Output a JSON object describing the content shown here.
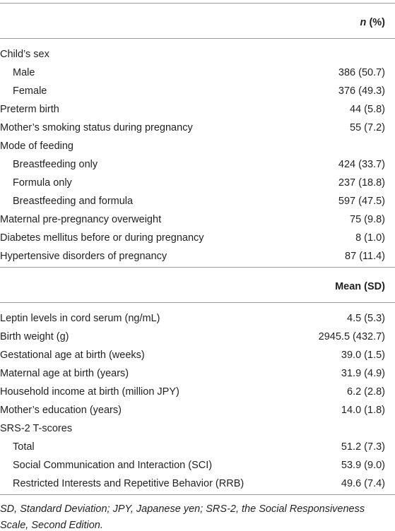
{
  "sections": [
    {
      "header": {
        "italic": "n",
        "rest": "(%)"
      },
      "rows": [
        {
          "label": "Child’s sex",
          "rows": [
            {
              "label": "Male",
              "value": "386 (50.7)"
            },
            {
              "label": "Female",
              "value": "376 (49.3)"
            }
          ]
        },
        {
          "label": "Preterm birth",
          "value": "44 (5.8)"
        },
        {
          "label": "Mother’s smoking status during pregnancy",
          "value": "55 (7.2)"
        },
        {
          "label": "Mode of feeding",
          "rows": [
            {
              "label": "Breastfeeding only",
              "value": "424 (33.7)"
            },
            {
              "label": "Formula only",
              "value": "237 (18.8)"
            },
            {
              "label": "Breastfeeding and formula",
              "value": "597 (47.5)"
            }
          ]
        },
        {
          "label": "Maternal pre-pregnancy overweight",
          "value": "75 (9.8)"
        },
        {
          "label": "Diabetes mellitus before or during pregnancy",
          "value": "8 (1.0)"
        },
        {
          "label": "Hypertensive disorders of pregnancy",
          "value": "87 (11.4)"
        }
      ]
    },
    {
      "header": {
        "text": "Mean (SD)"
      },
      "rows": [
        {
          "label": "Leptin levels in cord serum (ng/mL)",
          "value": "4.5 (5.3)"
        },
        {
          "label": "Birth weight (g)",
          "value": "2945.5 (432.7)"
        },
        {
          "label": "Gestational age at birth (weeks)",
          "value": "39.0 (1.5)"
        },
        {
          "label": "Maternal age at birth (years)",
          "value": "31.9 (4.9)"
        },
        {
          "label": "Household income at birth (million JPY)",
          "value": "6.2 (2.8)"
        },
        {
          "label": "Mother’s education (years)",
          "value": "14.0 (1.8)"
        },
        {
          "label": "SRS-2 T-scores",
          "rows": [
            {
              "label": "Total",
              "value": "51.2 (7.3)"
            },
            {
              "label": "Social Communication and Interaction (SCI)",
              "value": "53.9 (9.0)"
            },
            {
              "label": "Restricted Interests and Repetitive Behavior (RRB)",
              "value": "49.6 (7.4)"
            }
          ]
        }
      ]
    }
  ],
  "footnote": "SD, Standard Deviation; JPY, Japanese yen; SRS-2, the Social Responsiveness Scale, Second Edition."
}
